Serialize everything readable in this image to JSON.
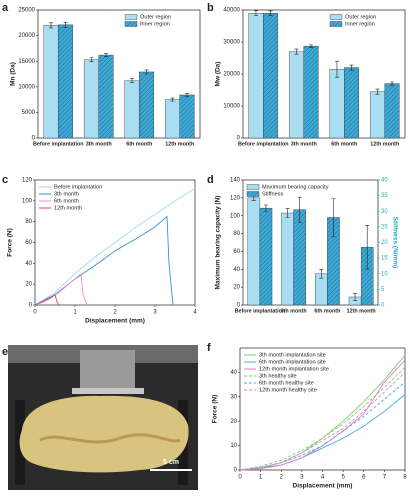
{
  "chart_data": [
    {
      "type": "bar",
      "label": "a",
      "ylabel": "Mn (Da)",
      "categories": [
        "Before implantation",
        "3th month",
        "6th month",
        "12th month"
      ],
      "series": [
        {
          "name": "Outer region",
          "color": "#a9ddf1",
          "values": [
            22000,
            15300,
            11200,
            7500
          ],
          "errors": [
            500,
            400,
            400,
            300
          ]
        },
        {
          "name": "Inner region",
          "color": "#3fa9d6",
          "hatch": true,
          "values": [
            22100,
            16200,
            12900,
            8400
          ],
          "errors": [
            500,
            300,
            400,
            300
          ]
        }
      ],
      "ylim": [
        0,
        25000
      ],
      "yticks": [
        0,
        5000,
        10000,
        15000,
        20000,
        25000
      ],
      "legend": "upper right"
    },
    {
      "type": "bar",
      "label": "b",
      "ylabel": "Mw (Da)",
      "categories": [
        "Before implantation",
        "3th month",
        "6th month",
        "12th month"
      ],
      "series": [
        {
          "name": "Outer region",
          "color": "#a9ddf1",
          "values": [
            39000,
            27000,
            21500,
            14500
          ],
          "errors": [
            800,
            800,
            2500,
            800
          ]
        },
        {
          "name": "Inner region",
          "color": "#3fa9d6",
          "hatch": true,
          "values": [
            39000,
            28700,
            22000,
            17000
          ],
          "errors": [
            700,
            400,
            800,
            500
          ]
        }
      ],
      "ylim": [
        0,
        40000
      ],
      "yticks": [
        0,
        10000,
        20000,
        30000,
        40000
      ],
      "legend": "upper right"
    },
    {
      "type": "line",
      "label": "c",
      "xlabel": "Displacement (mm)",
      "ylabel": "Force (N)",
      "series": [
        {
          "name": "Before implantation",
          "color": "#9fdde8",
          "x": [
            0,
            0.5,
            1,
            1.5,
            2,
            2.5,
            3,
            3.5,
            4
          ],
          "values": [
            0,
            12,
            30,
            46,
            60,
            74,
            87,
            100,
            112
          ]
        },
        {
          "name": "3th month",
          "color": "#3a8fd6",
          "x": [
            0,
            0.5,
            1,
            1.5,
            2,
            2.5,
            3,
            3.3,
            3.35,
            3.45
          ],
          "values": [
            0,
            10,
            25,
            38,
            52,
            63,
            75,
            85,
            40,
            0
          ]
        },
        {
          "name": "6th month",
          "color": "#f08fc0",
          "x": [
            0,
            0.3,
            0.6,
            0.9,
            1.15,
            1.2,
            1.3
          ],
          "values": [
            0,
            5,
            12,
            22,
            30,
            10,
            0
          ]
        },
        {
          "name": "12th month",
          "color": "#e8414f",
          "x": [
            0,
            0.2,
            0.4,
            0.5,
            0.55,
            0.6
          ],
          "values": [
            0,
            3,
            7,
            10,
            3,
            0
          ]
        }
      ],
      "xlim": [
        0,
        4
      ],
      "xticks": [
        0,
        1,
        2,
        3,
        4
      ],
      "ylim": [
        0,
        120
      ],
      "yticks": [
        0,
        20,
        40,
        60,
        80,
        100,
        120
      ],
      "legend": "upper left"
    },
    {
      "type": "bar",
      "label": "d",
      "ylabel": "Maximum bearing capacity (N)",
      "y2label": "Stiffness (N/mm)",
      "categories": [
        "Before implantation",
        "3th month",
        "6th month",
        "12th month"
      ],
      "series": [
        {
          "name": "Maximum bearing capacity",
          "color": "#a9ddf1",
          "values": [
            120,
            103,
            35,
            9
          ],
          "errors": [
            3,
            5,
            5,
            4
          ]
        },
        {
          "name": "Stiffness",
          "color": "#3fa9d6",
          "hatch": true,
          "axis": "y2",
          "values": [
            31,
            30.5,
            28,
            18.5
          ],
          "errors": [
            1,
            4,
            6,
            7
          ]
        }
      ],
      "ylim": [
        0,
        140
      ],
      "yticks": [
        0,
        20,
        40,
        60,
        80,
        100,
        120,
        140
      ],
      "y2lim": [
        0,
        40
      ],
      "y2ticks": [
        0,
        5,
        10,
        15,
        20,
        25,
        30,
        35,
        40
      ],
      "legend": "upper left"
    },
    {
      "type": "line",
      "label": "f",
      "xlabel": "Displacement (mm)",
      "ylabel": "Force (N)",
      "series": [
        {
          "name": "3th month implantation site",
          "color": "#7ccf6a",
          "x": [
            0,
            1,
            2,
            3,
            4,
            5,
            6,
            7,
            8
          ],
          "values": [
            0,
            1,
            3,
            7,
            13,
            20,
            28,
            37,
            47
          ]
        },
        {
          "name": "6th month implantation site",
          "color": "#4aa8e0",
          "x": [
            0,
            1,
            2,
            3,
            4,
            5,
            6,
            7,
            8
          ],
          "values": [
            0,
            1,
            2,
            5,
            9,
            13,
            18,
            24,
            31
          ]
        },
        {
          "name": "12th month implantation site",
          "color": "#e87fc0",
          "x": [
            0,
            1,
            2,
            3,
            4,
            5,
            6,
            7,
            8
          ],
          "values": [
            0,
            0.5,
            2,
            5,
            10,
            16,
            23,
            36,
            45
          ]
        },
        {
          "name": "3th healthy site",
          "color": "#7ccf6a",
          "dashed": true,
          "x": [
            0,
            1,
            2,
            3,
            4,
            5,
            6,
            7,
            8
          ],
          "values": [
            0,
            1.5,
            4,
            8,
            13,
            19,
            26,
            34,
            42
          ]
        },
        {
          "name": "6th month healthy site",
          "color": "#4aa8e0",
          "dashed": true,
          "x": [
            0,
            1,
            2,
            3,
            4,
            5,
            6,
            7,
            8
          ],
          "values": [
            0,
            1,
            3,
            6,
            10,
            16,
            22,
            29,
            36
          ]
        },
        {
          "name": "12th month healthy site",
          "color": "#e87fc0",
          "dashed": true,
          "x": [
            0,
            1,
            2,
            3,
            4,
            5,
            6,
            7,
            8
          ],
          "values": [
            0,
            1,
            3,
            7,
            12,
            17,
            24,
            32,
            40
          ]
        }
      ],
      "xlim": [
        0,
        8
      ],
      "xticks": [
        0,
        1,
        2,
        3,
        4,
        5,
        6,
        7,
        8
      ],
      "ylim": [
        0,
        50
      ],
      "yticks": [
        0,
        10,
        20,
        30,
        40
      ],
      "legend": "upper left"
    }
  ],
  "photo": {
    "label": "e",
    "scale_bar": "5 cm"
  }
}
